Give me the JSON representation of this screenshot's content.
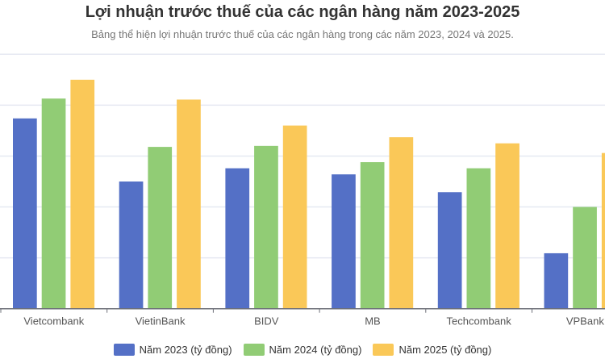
{
  "chart_data": {
    "type": "bar",
    "title": "Lợi nhuận trước thuế của các ngân hàng năm 2023-2025",
    "subtitle": "Bảng thể hiện lợi nhuận trước thuế của các ngân hàng trong các năm 2023, 2024 và 2025.",
    "categories": [
      "Vietcombank",
      "VietinBank",
      "BIDV",
      "MB",
      "Techcombank",
      "VPBank"
    ],
    "series": [
      {
        "name": "Năm 2023 (tỷ đồng)",
        "color": "#5470c6",
        "values": [
          37400,
          25000,
          27600,
          26400,
          22900,
          10900
        ]
      },
      {
        "name": "Năm 2024 (tỷ đồng)",
        "color": "#91cc75",
        "values": [
          41300,
          31800,
          32000,
          28800,
          27600,
          20000
        ]
      },
      {
        "name": "Năm 2025 (tỷ đồng)",
        "color": "#fac858",
        "values": [
          45000,
          41100,
          36000,
          33700,
          32500,
          30600
        ]
      }
    ],
    "ylim": [
      0,
      50000
    ],
    "grid": true,
    "legend_position": "bottom"
  }
}
